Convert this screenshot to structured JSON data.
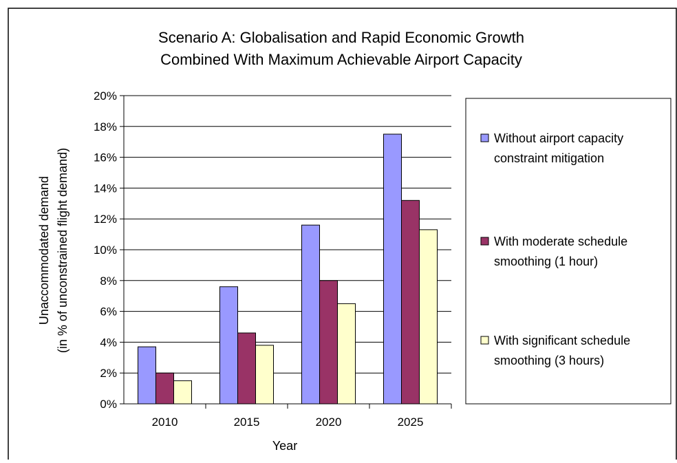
{
  "chart_data": {
    "type": "bar",
    "title": [
      "Scenario A: Globalisation and Rapid Economic Growth",
      "Combined With Maximum Achievable Airport Capacity"
    ],
    "xlabel": "Year",
    "ylabel": [
      "Unaccommodated demand",
      "(in % of unconstrained flight demand)"
    ],
    "categories": [
      "2010",
      "2015",
      "2020",
      "2025"
    ],
    "y_ticks": [
      "0%",
      "2%",
      "4%",
      "6%",
      "8%",
      "10%",
      "12%",
      "14%",
      "16%",
      "18%",
      "20%"
    ],
    "ylim": [
      0,
      20
    ],
    "grid": true,
    "legend_position": "right",
    "series": [
      {
        "name": [
          "Without airport capacity",
          "constraint mitigation"
        ],
        "values": [
          3.7,
          7.6,
          11.6,
          17.5
        ],
        "color": "#9999ff"
      },
      {
        "name": [
          "With moderate schedule",
          "smoothing (1 hour)"
        ],
        "values": [
          2.0,
          4.6,
          8.0,
          13.2
        ],
        "color": "#993366"
      },
      {
        "name": [
          "With significant schedule",
          "smoothing (3 hours)"
        ],
        "values": [
          1.5,
          3.8,
          6.5,
          11.3
        ],
        "color": "#ffffcc"
      }
    ]
  }
}
